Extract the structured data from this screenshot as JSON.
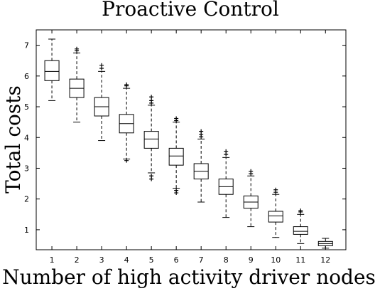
{
  "chart_data": {
    "type": "boxplot",
    "title": "Proactive Control",
    "xlabel": "Number of high activity driver nodes",
    "ylabel": "Total costs",
    "ylim": [
      0.35,
      7.5
    ],
    "yticks": [
      1,
      2,
      3,
      4,
      5,
      6,
      7
    ],
    "categories": [
      "1",
      "2",
      "3",
      "4",
      "5",
      "6",
      "7",
      "8",
      "9",
      "10",
      "11",
      "12"
    ],
    "grid": false,
    "series": [
      {
        "values": [
          {
            "whisker_low": 5.2,
            "q1": 5.85,
            "median": 6.15,
            "q3": 6.5,
            "whisker_high": 7.2,
            "outliers": []
          },
          {
            "whisker_low": 4.5,
            "q1": 5.3,
            "median": 5.6,
            "q3": 5.9,
            "whisker_high": 6.75,
            "outliers": [
              6.82,
              6.88
            ]
          },
          {
            "whisker_low": 3.9,
            "q1": 4.7,
            "median": 5.0,
            "q3": 5.3,
            "whisker_high": 6.15,
            "outliers": [
              6.25,
              6.35
            ]
          },
          {
            "whisker_low": 3.3,
            "q1": 4.15,
            "median": 4.45,
            "q3": 4.75,
            "whisker_high": 5.6,
            "outliers": [
              3.25,
              5.68,
              5.72
            ]
          },
          {
            "whisker_low": 2.85,
            "q1": 3.65,
            "median": 3.95,
            "q3": 4.2,
            "whisker_high": 5.05,
            "outliers": [
              2.65,
              2.75,
              5.12,
              5.2,
              5.32
            ]
          },
          {
            "whisker_low": 2.35,
            "q1": 3.1,
            "median": 3.4,
            "q3": 3.65,
            "whisker_high": 4.5,
            "outliers": [
              2.2,
              2.28,
              4.55,
              4.62
            ]
          },
          {
            "whisker_low": 1.9,
            "q1": 2.65,
            "median": 2.9,
            "q3": 3.15,
            "whisker_high": 3.95,
            "outliers": [
              4.02,
              4.1,
              4.2
            ]
          },
          {
            "whisker_low": 1.4,
            "q1": 2.15,
            "median": 2.4,
            "q3": 2.65,
            "whisker_high": 3.35,
            "outliers": [
              3.45,
              3.55
            ]
          },
          {
            "whisker_low": 1.1,
            "q1": 1.7,
            "median": 1.9,
            "q3": 2.1,
            "whisker_high": 2.75,
            "outliers": [
              2.82,
              2.9
            ]
          },
          {
            "whisker_low": 0.75,
            "q1": 1.25,
            "median": 1.45,
            "q3": 1.6,
            "whisker_high": 2.15,
            "outliers": [
              2.22,
              2.3
            ]
          },
          {
            "whisker_low": 0.55,
            "q1": 0.85,
            "median": 0.95,
            "q3": 1.1,
            "whisker_high": 1.5,
            "outliers": [
              1.58,
              1.62
            ]
          },
          {
            "whisker_low": 0.4,
            "q1": 0.48,
            "median": 0.55,
            "q3": 0.62,
            "whisker_high": 0.72,
            "outliers": []
          }
        ]
      }
    ]
  }
}
